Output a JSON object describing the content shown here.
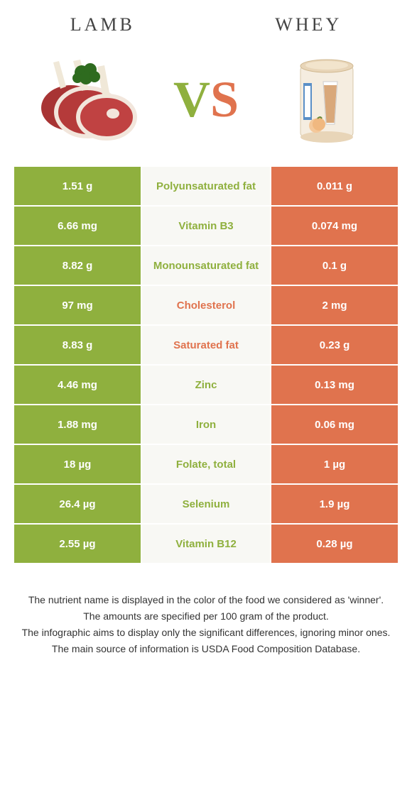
{
  "colors": {
    "green": "#8fb03e",
    "orange": "#e0734e",
    "mid_bg": "#f8f8f4",
    "meat_red": "#b53a3a",
    "meat_fat": "#f2e6dc",
    "bone": "#f0e8d8",
    "parsley": "#2e6b1f",
    "can_body": "#f5ede0",
    "can_lid": "#e8d5b8",
    "can_label": "#5a8fc7",
    "shake": "#d9a87a"
  },
  "header": {
    "left": "Lamb",
    "right": "Whey",
    "vs_v": "V",
    "vs_s": "S"
  },
  "rows": [
    {
      "left": "1.51 g",
      "label": "Polyunsaturated fat",
      "right": "0.011 g",
      "winner": "left"
    },
    {
      "left": "6.66 mg",
      "label": "Vitamin B3",
      "right": "0.074 mg",
      "winner": "left"
    },
    {
      "left": "8.82 g",
      "label": "Monounsaturated fat",
      "right": "0.1 g",
      "winner": "left"
    },
    {
      "left": "97 mg",
      "label": "Cholesterol",
      "right": "2 mg",
      "winner": "right"
    },
    {
      "left": "8.83 g",
      "label": "Saturated fat",
      "right": "0.23 g",
      "winner": "right"
    },
    {
      "left": "4.46 mg",
      "label": "Zinc",
      "right": "0.13 mg",
      "winner": "left"
    },
    {
      "left": "1.88 mg",
      "label": "Iron",
      "right": "0.06 mg",
      "winner": "left"
    },
    {
      "left": "18 µg",
      "label": "Folate, total",
      "right": "1 µg",
      "winner": "left"
    },
    {
      "left": "26.4 µg",
      "label": "Selenium",
      "right": "1.9 µg",
      "winner": "left"
    },
    {
      "left": "2.55 µg",
      "label": "Vitamin B12",
      "right": "0.28 µg",
      "winner": "left"
    }
  ],
  "footnotes": [
    "The nutrient name is displayed in the color of the food we considered as 'winner'.",
    "The amounts are specified per 100 gram of the product.",
    "The infographic aims to display only the significant differences, ignoring minor ones.",
    "The main source of information is USDA Food Composition Database."
  ]
}
